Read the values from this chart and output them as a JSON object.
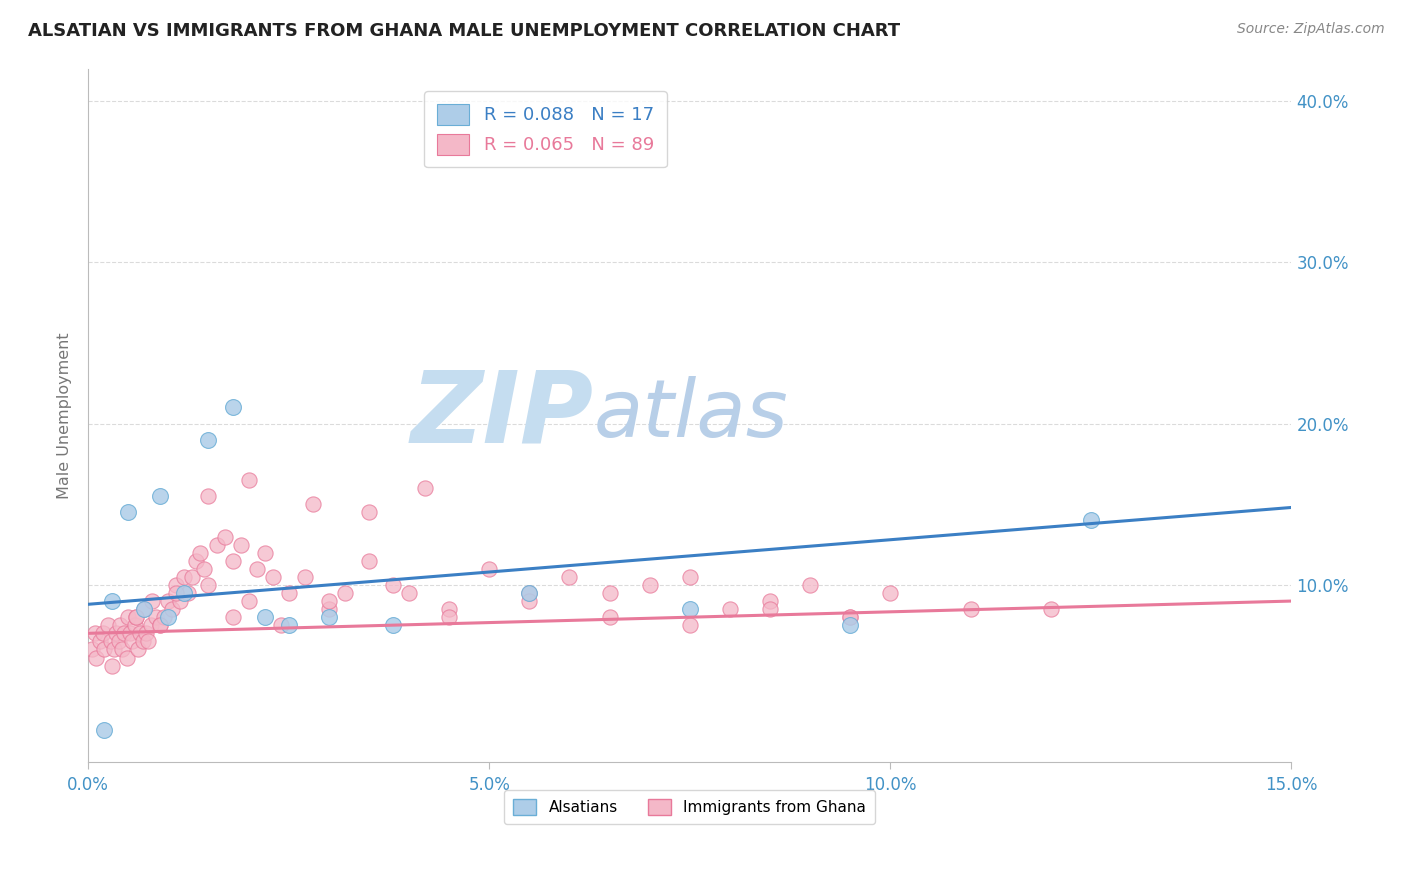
{
  "title": "ALSATIAN VS IMMIGRANTS FROM GHANA MALE UNEMPLOYMENT CORRELATION CHART",
  "source": "Source: ZipAtlas.com",
  "xlabel_vals": [
    0.0,
    5.0,
    10.0,
    15.0
  ],
  "ylabel_vals": [
    10.0,
    20.0,
    30.0,
    40.0
  ],
  "xlim": [
    0,
    15.0
  ],
  "ylim": [
    -1.0,
    42.0
  ],
  "ylabel": "Male Unemployment",
  "legend1_r": "R = 0.088",
  "legend1_n": "N = 17",
  "legend2_r": "R = 0.065",
  "legend2_n": "N = 89",
  "legend_label1": "Alsatians",
  "legend_label2": "Immigrants from Ghana",
  "color_blue": "#aecde8",
  "color_pink": "#f4b8c8",
  "color_blue_edge": "#6aaed6",
  "color_pink_edge": "#e8799a",
  "color_blue_line": "#3b7fc4",
  "color_pink_line": "#e8799a",
  "watermark_zip": "ZIP",
  "watermark_atlas": "atlas",
  "watermark_color_zip": "#c5ddf0",
  "watermark_color_atlas": "#b8cfe8",
  "bg_color": "#ffffff",
  "grid_color": "#cccccc",
  "title_color": "#333333",
  "axis_label_color": "#777777",
  "tick_color_blue": "#4292c6",
  "blue_x": [
    1.8,
    1.5,
    0.9,
    0.5,
    1.2,
    0.3,
    0.7,
    1.0,
    2.2,
    2.5,
    3.0,
    3.8,
    5.5,
    7.5,
    9.5,
    12.5,
    0.2
  ],
  "blue_y": [
    21.0,
    19.0,
    15.5,
    14.5,
    9.5,
    9.0,
    8.5,
    8.0,
    8.0,
    7.5,
    8.0,
    7.5,
    9.5,
    8.5,
    7.5,
    14.0,
    1.0
  ],
  "pink_x": [
    0.05,
    0.08,
    0.1,
    0.15,
    0.18,
    0.2,
    0.25,
    0.28,
    0.3,
    0.32,
    0.35,
    0.38,
    0.4,
    0.42,
    0.45,
    0.48,
    0.5,
    0.52,
    0.55,
    0.58,
    0.6,
    0.62,
    0.65,
    0.68,
    0.7,
    0.72,
    0.75,
    0.78,
    0.8,
    0.85,
    0.9,
    0.95,
    1.0,
    1.05,
    1.1,
    1.15,
    1.2,
    1.25,
    1.3,
    1.35,
    1.4,
    1.45,
    1.5,
    1.6,
    1.7,
    1.8,
    1.9,
    2.0,
    2.1,
    2.2,
    2.3,
    2.5,
    2.7,
    3.0,
    3.2,
    3.5,
    3.8,
    4.0,
    4.5,
    5.0,
    5.5,
    6.0,
    6.5,
    7.0,
    7.5,
    8.0,
    8.5,
    9.0,
    9.5,
    10.0,
    11.0,
    2.0,
    2.8,
    1.5,
    3.5,
    4.2,
    0.6,
    0.9,
    1.1,
    1.8,
    2.4,
    3.0,
    4.5,
    5.5,
    6.5,
    7.5,
    8.5,
    9.5,
    12.0
  ],
  "pink_y": [
    6.0,
    7.0,
    5.5,
    6.5,
    7.0,
    6.0,
    7.5,
    6.5,
    5.0,
    6.0,
    7.0,
    6.5,
    7.5,
    6.0,
    7.0,
    5.5,
    8.0,
    7.0,
    6.5,
    7.5,
    8.0,
    6.0,
    7.0,
    6.5,
    8.5,
    7.0,
    6.5,
    7.5,
    9.0,
    8.0,
    7.5,
    8.0,
    9.0,
    8.5,
    10.0,
    9.0,
    10.5,
    9.5,
    10.5,
    11.5,
    12.0,
    11.0,
    10.0,
    12.5,
    13.0,
    11.5,
    12.5,
    9.0,
    11.0,
    12.0,
    10.5,
    9.5,
    10.5,
    8.5,
    9.5,
    11.5,
    10.0,
    9.5,
    8.5,
    11.0,
    9.5,
    10.5,
    9.5,
    10.0,
    10.5,
    8.5,
    9.0,
    10.0,
    8.0,
    9.5,
    8.5,
    16.5,
    15.0,
    15.5,
    14.5,
    16.0,
    8.0,
    7.5,
    9.5,
    8.0,
    7.5,
    9.0,
    8.0,
    9.0,
    8.0,
    7.5,
    8.5,
    8.0,
    8.5
  ],
  "blue_trendline_x0": 0.0,
  "blue_trendline_y0": 8.8,
  "blue_trendline_x1": 15.0,
  "blue_trendline_y1": 14.8,
  "pink_trendline_x0": 0.0,
  "pink_trendline_y0": 7.0,
  "pink_trendline_x1": 15.0,
  "pink_trendline_y1": 9.0
}
